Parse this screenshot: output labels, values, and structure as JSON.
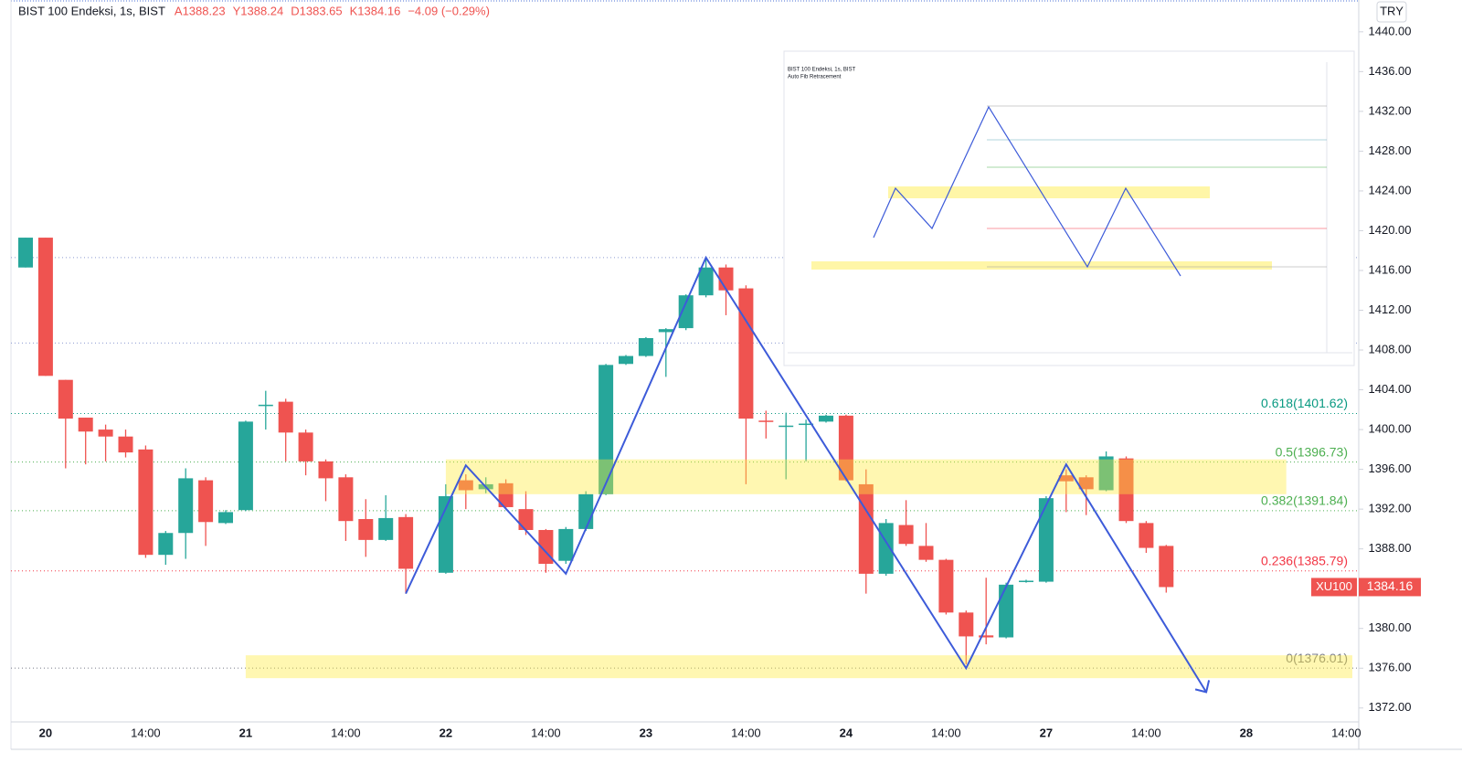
{
  "chart_data": {
    "type": "candlestick",
    "title": "BIST 100 Endeksi, 1s, BIST",
    "header_values": [
      "A1388.23",
      "Y1388.24",
      "D1383.65",
      "K1384.16",
      "−4.09 (−0.29%)"
    ],
    "currency": "TRY",
    "categories": [
      null,
      "20",
      null,
      null,
      null,
      null,
      "14:00",
      null,
      null,
      null,
      null,
      "21",
      null,
      null,
      null,
      null,
      "14:00",
      null,
      null,
      null,
      null,
      "22",
      null,
      null,
      null,
      null,
      "14:00",
      null,
      null,
      null,
      null,
      "23",
      null,
      null,
      null,
      null,
      "14:00",
      null,
      null,
      null,
      null,
      "24",
      null,
      null,
      null,
      null,
      "14:00",
      null,
      null,
      null,
      null,
      "27",
      null,
      null,
      null,
      null,
      "14:00",
      null,
      null,
      null,
      null,
      "28",
      null,
      null,
      null,
      null,
      "14:00"
    ],
    "open": [
      1416.3,
      1419.3,
      1405.0,
      1401.2,
      1400.0,
      1399.3,
      1398.0,
      1387.4,
      1389.6,
      1394.9,
      1390.6,
      1391.9,
      1402.4,
      1402.8,
      1399.7,
      1396.8,
      1395.2,
      1391.0,
      1388.9,
      1391.2,
      null,
      1385.6,
      1394.9,
      1394.0,
      1394.6,
      1392.0,
      1389.9,
      1386.8,
      1390.0,
      1393.5,
      1406.6,
      1407.4,
      1409.8,
      1410.2,
      1413.5,
      1416.3,
      1414.2,
      1400.9,
      1400.3,
      1400.5,
      1400.8,
      1401.4,
      1394.5,
      1385.5,
      1390.4,
      1388.3,
      1386.9,
      1381.6,
      1379.3,
      1379.1,
      1384.7,
      1384.7,
      1395.4,
      1395.2,
      1393.9,
      1397.1,
      1390.6,
      1388.3,
      null,
      null,
      null,
      null,
      null,
      null,
      null,
      null,
      null
    ],
    "high": [
      1419.3,
      1419.3,
      1405.0,
      1401.2,
      1400.5,
      1400.0,
      1398.4,
      1389.8,
      1396.1,
      1395.2,
      1391.9,
      1400.9,
      1403.9,
      1403.1,
      1400.0,
      1397.0,
      1395.5,
      1393.0,
      1393.4,
      1391.5,
      null,
      1394.5,
      1395.5,
      1395.2,
      1395.0,
      1393.8,
      1390.0,
      1390.2,
      1393.8,
      1406.6,
      1407.5,
      1409.3,
      1410.2,
      1413.6,
      1417.3,
      1416.6,
      1414.5,
      1401.9,
      1401.7,
      1401.0,
      1401.5,
      1401.5,
      1396.0,
      1391.0,
      1392.9,
      1390.6,
      1387.0,
      1381.8,
      1385.1,
      1384.6,
      1384.9,
      1393.3,
      1396.0,
      1395.4,
      1397.8,
      1397.3,
      1390.8,
      1388.4,
      null,
      null,
      null,
      null,
      null,
      null,
      null,
      null,
      null
    ],
    "low": [
      1416.3,
      1405.4,
      1396.1,
      1396.5,
      1396.8,
      1397.2,
      1387.1,
      1386.4,
      1387.0,
      1388.3,
      1390.5,
      1391.8,
      1400.0,
      1396.8,
      1395.4,
      1392.8,
      1388.8,
      1387.2,
      1388.8,
      1383.5,
      null,
      1385.5,
      1392.0,
      1393.6,
      1392.0,
      1389.4,
      1385.6,
      1386.5,
      1389.8,
      1393.4,
      1406.5,
      1407.3,
      1405.3,
      1410.0,
      1413.3,
      1411.5,
      1394.5,
      1399.1,
      1395.0,
      1396.8,
      1400.7,
      1394.8,
      1383.5,
      1385.3,
      1388.3,
      1386.7,
      1381.4,
      1376.4,
      1378.4,
      1379.0,
      1384.6,
      1384.6,
      1391.7,
      1391.4,
      1393.8,
      1390.6,
      1387.6,
      1383.6,
      null,
      null,
      null,
      null,
      null,
      null,
      null,
      null,
      null
    ],
    "close": [
      1419.3,
      1405.4,
      1401.1,
      1399.8,
      1399.3,
      1397.7,
      1387.4,
      1389.6,
      1395.1,
      1390.7,
      1391.7,
      1400.8,
      1402.5,
      1399.7,
      1396.8,
      1395.1,
      1390.8,
      1388.9,
      1391.1,
      1386.0,
      null,
      1393.3,
      1393.9,
      1394.5,
      1392.2,
      1389.9,
      1386.5,
      1390.0,
      1393.5,
      1406.5,
      1407.4,
      1409.2,
      1410.1,
      1413.5,
      1416.3,
      1414.0,
      1401.1,
      1400.8,
      1400.4,
      1400.6,
      1401.4,
      1394.9,
      1385.5,
      1390.6,
      1388.5,
      1386.9,
      1381.6,
      1379.2,
      1379.1,
      1384.4,
      1384.8,
      1393.1,
      1394.8,
      1394.0,
      1397.3,
      1390.8,
      1388.1,
      1384.16,
      null,
      null,
      null,
      null,
      null,
      null,
      null,
      null,
      null
    ],
    "up_color": "#26a69a",
    "down_color": "#ef5350",
    "ylim": [
      1370.6,
      1443.2
    ],
    "yticks": [
      {
        "value": 1440,
        "label": "1440.00"
      },
      {
        "value": 1436,
        "label": "1436.00"
      },
      {
        "value": 1432,
        "label": "1432.00"
      },
      {
        "value": 1428,
        "label": "1428.00"
      },
      {
        "value": 1424,
        "label": "1424.00"
      },
      {
        "value": 1420,
        "label": "1420.00"
      },
      {
        "value": 1416,
        "label": "1416.00"
      },
      {
        "value": 1412,
        "label": "1412.00"
      },
      {
        "value": 1408,
        "label": "1408.00"
      },
      {
        "value": 1404,
        "label": "1404.00"
      },
      {
        "value": 1400,
        "label": "1400.00"
      },
      {
        "value": 1396,
        "label": "1396.00"
      },
      {
        "value": 1392,
        "label": "1392.00"
      },
      {
        "value": 1388,
        "label": "1388.00"
      },
      {
        "value": 1384,
        "label": "1384.00"
      },
      {
        "value": 1380,
        "label": "1380.00"
      },
      {
        "value": 1376,
        "label": "1376.00"
      },
      {
        "value": 1372,
        "label": "1372.00"
      }
    ],
    "fib_levels": [
      {
        "label": "0.618(1401.62)",
        "value": 1401.62,
        "color": "#089981"
      },
      {
        "label": "0.5(1396.73)",
        "value": 1396.73,
        "color": "#4caf50"
      },
      {
        "label": "0.382(1391.84)",
        "value": 1391.84,
        "color": "#4caf50"
      },
      {
        "label": "0.236(1385.79)",
        "value": 1385.79,
        "color": "#f23645"
      },
      {
        "label": "0(1376.01)",
        "value": 1376.01,
        "color": "#787b86"
      }
    ],
    "extra_levels": [
      1417.3,
      1408.7
    ],
    "zones": [
      {
        "x": [
          21,
          63
        ],
        "y": [
          1397.0,
          1393.5
        ]
      },
      {
        "x": [
          11,
          66.3
        ],
        "y": [
          1377.3,
          1375.0
        ]
      }
    ],
    "zigzag": {
      "x": [
        19,
        22,
        27,
        34,
        47,
        52,
        59
      ],
      "y": [
        1383.5,
        1396.4,
        1385.5,
        1417.3,
        1376.0,
        1396.5,
        1373.6
      ],
      "color": "#3d5bd9"
    },
    "price_tag": {
      "name": "XU100",
      "value": 1384.16
    },
    "inset": {
      "title": "BIST 100 Endeksi, 1s, BIST",
      "subtitle": "Auto Fib Retracement"
    }
  }
}
